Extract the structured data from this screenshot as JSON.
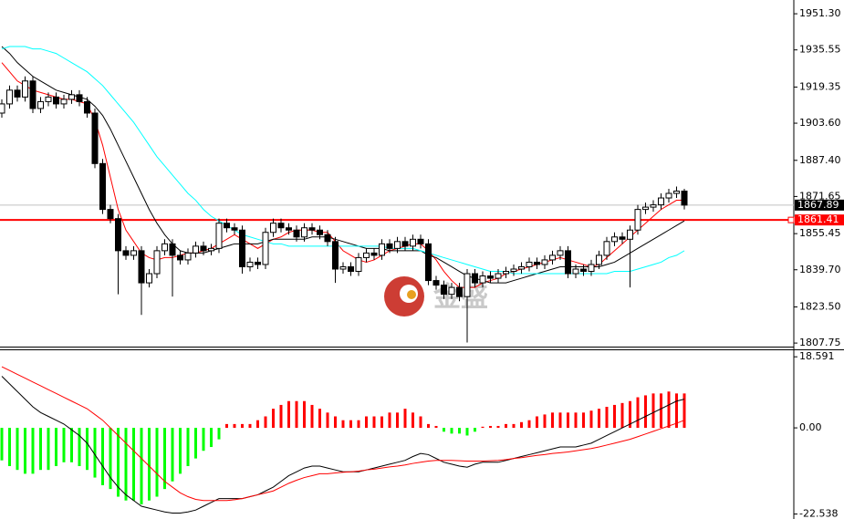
{
  "chart_data": [
    {
      "type": "candlestick",
      "watermark": "金盛",
      "ylim": [
        1806.2,
        1957.3
      ],
      "yticks": [
        {
          "value": 1951.3,
          "label": "1951.30"
        },
        1935.55,
        1919.35,
        {
          "value": 1903.6,
          "label": "1903.60"
        },
        {
          "value": 1887.4,
          "label": "1887.40"
        },
        1871.65,
        1855.45,
        {
          "value": 1839.7,
          "label": "1839.70"
        },
        {
          "value": 1823.5,
          "label": "1823.50"
        },
        1807.75
      ],
      "last_price": 1867.89,
      "last_price_color": "#c0c0c0",
      "level": 1861.41,
      "level_color": "#ff0000",
      "up_color": "#ffffff",
      "down_color": "#000000",
      "open": [
        1908,
        1912,
        1918,
        1915,
        1922,
        1910,
        1913,
        1915,
        1912,
        1914,
        1916,
        1913,
        1908,
        1886,
        1866,
        1862,
        1848,
        1846,
        1848,
        1834,
        1838,
        1848,
        1851,
        1846,
        1844,
        1847,
        1850,
        1848,
        1849,
        1860,
        1858,
        1857,
        1841,
        1843,
        1842,
        1856,
        1860,
        1858,
        1857,
        1854,
        1858,
        1857,
        1855,
        1852,
        1840,
        1841,
        1839,
        1845,
        1847,
        1846,
        1851,
        1849,
        1852,
        1850,
        1853,
        1851,
        1835,
        1833,
        1829,
        1832,
        1828,
        1838,
        1834,
        1837,
        1836,
        1838,
        1839,
        1840,
        1841,
        1843,
        1842,
        1844,
        1846,
        1848,
        1838,
        1840,
        1839,
        1842,
        1846,
        1852,
        1854,
        1853,
        1857,
        1866,
        1867,
        1868,
        1871,
        1873,
        1874
      ],
      "high": [
        1914,
        1920,
        1920,
        1924,
        1924,
        1915,
        1917,
        1917,
        1916,
        1918,
        1918,
        1915,
        1910,
        1888,
        1868,
        1864,
        1850,
        1850,
        1850,
        1840,
        1850,
        1853,
        1853,
        1848,
        1849,
        1852,
        1852,
        1851,
        1862,
        1862,
        1860,
        1859,
        1845,
        1845,
        1858,
        1862,
        1862,
        1860,
        1859,
        1860,
        1860,
        1859,
        1857,
        1854,
        1843,
        1843,
        1847,
        1849,
        1849,
        1853,
        1853,
        1854,
        1854,
        1855,
        1855,
        1853,
        1837,
        1835,
        1834,
        1834,
        1840,
        1840,
        1839,
        1839,
        1840,
        1841,
        1842,
        1843,
        1845,
        1845,
        1846,
        1848,
        1850,
        1850,
        1842,
        1842,
        1844,
        1848,
        1854,
        1856,
        1856,
        1859,
        1868,
        1869,
        1870,
        1873,
        1875,
        1876,
        1875
      ],
      "low": [
        1906,
        1910,
        1913,
        1913,
        1908,
        1908,
        1911,
        1910,
        1910,
        1912,
        1911,
        1906,
        1884,
        1864,
        1860,
        1829,
        1844,
        1844,
        1820,
        1832,
        1836,
        1846,
        1828,
        1842,
        1842,
        1845,
        1846,
        1846,
        1847,
        1856,
        1855,
        1838,
        1839,
        1840,
        1840,
        1854,
        1856,
        1855,
        1852,
        1852,
        1855,
        1853,
        1850,
        1834,
        1838,
        1837,
        1837,
        1843,
        1844,
        1844,
        1847,
        1847,
        1848,
        1848,
        1849,
        1833,
        1831,
        1827,
        1827,
        1826,
        1808,
        1832,
        1832,
        1834,
        1834,
        1836,
        1837,
        1838,
        1839,
        1840,
        1840,
        1842,
        1844,
        1836,
        1836,
        1837,
        1837,
        1840,
        1844,
        1850,
        1851,
        1832,
        1855,
        1864,
        1865,
        1866,
        1869,
        1871,
        1866
      ],
      "close": [
        1912,
        1918,
        1915,
        1922,
        1910,
        1913,
        1915,
        1912,
        1914,
        1916,
        1913,
        1908,
        1886,
        1866,
        1862,
        1848,
        1846,
        1848,
        1834,
        1838,
        1848,
        1851,
        1846,
        1844,
        1847,
        1850,
        1848,
        1849,
        1860,
        1858,
        1857,
        1841,
        1843,
        1842,
        1856,
        1860,
        1858,
        1857,
        1854,
        1858,
        1857,
        1855,
        1852,
        1840,
        1841,
        1839,
        1845,
        1847,
        1846,
        1851,
        1849,
        1852,
        1850,
        1853,
        1851,
        1835,
        1833,
        1829,
        1832,
        1828,
        1838,
        1834,
        1837,
        1836,
        1838,
        1839,
        1840,
        1841,
        1843,
        1842,
        1844,
        1846,
        1848,
        1838,
        1840,
        1839,
        1842,
        1846,
        1852,
        1854,
        1853,
        1857,
        1866,
        1867,
        1868,
        1871,
        1873,
        1874,
        1867.89
      ],
      "lines": [
        {
          "color": "#ff0000",
          "values": [
            1930,
            1926,
            1922,
            1920,
            1918,
            1917,
            1916,
            1915,
            1914,
            1914,
            1913,
            1912,
            1905,
            1894,
            1880,
            1866,
            1857,
            1852,
            1847,
            1845,
            1844,
            1845,
            1845,
            1846,
            1847,
            1847,
            1848,
            1849,
            1851,
            1853,
            1855,
            1853,
            1851,
            1849,
            1851,
            1853,
            1854,
            1856,
            1857,
            1857,
            1857,
            1856,
            1856,
            1852,
            1848,
            1846,
            1844,
            1843,
            1844,
            1846,
            1848,
            1849,
            1850,
            1851,
            1851,
            1848,
            1844,
            1839,
            1835,
            1832,
            1832,
            1832,
            1834,
            1835,
            1836,
            1838,
            1839,
            1840,
            1841,
            1842,
            1843,
            1844,
            1845,
            1844,
            1843,
            1842,
            1841,
            1842,
            1845,
            1848,
            1851,
            1854,
            1857,
            1860,
            1863,
            1866,
            1868,
            1870,
            1870
          ]
        },
        {
          "color": "#000000",
          "values": [
            1937,
            1934,
            1930,
            1927,
            1924,
            1922,
            1920,
            1918,
            1917,
            1916,
            1915,
            1914,
            1911,
            1907,
            1901,
            1894,
            1887,
            1880,
            1873,
            1866,
            1860,
            1855,
            1851,
            1848,
            1847,
            1847,
            1847,
            1848,
            1849,
            1850,
            1851,
            1851,
            1851,
            1851,
            1852,
            1853,
            1853,
            1853,
            1853,
            1853,
            1854,
            1854,
            1854,
            1853,
            1852,
            1851,
            1850,
            1849,
            1849,
            1849,
            1848,
            1848,
            1848,
            1848,
            1848,
            1846,
            1845,
            1843,
            1841,
            1839,
            1837,
            1836,
            1835,
            1834,
            1834,
            1834,
            1835,
            1836,
            1837,
            1838,
            1839,
            1840,
            1841,
            1841,
            1841,
            1841,
            1841,
            1841,
            1842,
            1843,
            1845,
            1847,
            1849,
            1851,
            1853,
            1855,
            1857,
            1859,
            1861
          ]
        },
        {
          "color": "#00ffff",
          "values": [
            1936,
            1937,
            1937,
            1937,
            1936,
            1936,
            1935,
            1934,
            1932,
            1930,
            1928,
            1926,
            1923,
            1920,
            1916,
            1912,
            1908,
            1904,
            1899,
            1894,
            1889,
            1885,
            1881,
            1877,
            1873,
            1870,
            1866,
            1863,
            1861,
            1859,
            1857,
            1855,
            1854,
            1853,
            1852,
            1851,
            1851,
            1850,
            1850,
            1850,
            1850,
            1850,
            1850,
            1850,
            1850,
            1850,
            1850,
            1850,
            1850,
            1850,
            1849,
            1849,
            1849,
            1849,
            1848,
            1847,
            1846,
            1845,
            1844,
            1843,
            1842,
            1841,
            1840,
            1839,
            1839,
            1839,
            1838,
            1838,
            1838,
            1838,
            1838,
            1838,
            1838,
            1838,
            1838,
            1838,
            1838,
            1838,
            1838,
            1839,
            1839,
            1839,
            1840,
            1841,
            1842,
            1843,
            1845,
            1846,
            1848
          ]
        }
      ]
    },
    {
      "type": "macd",
      "ylim": [
        -23.6,
        20.3
      ],
      "yticks": [
        18.591,
        {
          "value": 0,
          "label": "0.00"
        },
        -22.538
      ],
      "pos_color": "#ff0000",
      "neg_color": "#00ff00",
      "histogram": [
        -8.5,
        -10,
        -11,
        -12,
        -12,
        -11,
        -11,
        -10,
        -9,
        -9,
        -10,
        -11,
        -13,
        -15,
        -16,
        -18,
        -19,
        -19,
        -20,
        -19,
        -18,
        -16,
        -14,
        -12,
        -10,
        -8,
        -6,
        -5,
        -3,
        1,
        1,
        1,
        1,
        2,
        3,
        5,
        6,
        7,
        7,
        7,
        6,
        5,
        4,
        3,
        2,
        2,
        2,
        3,
        3,
        3,
        4,
        4,
        5,
        4,
        3,
        1,
        0.5,
        -1,
        -1.5,
        -1.5,
        -2,
        -1,
        0.3,
        0.5,
        0.5,
        1,
        1,
        1.5,
        2,
        3,
        3.5,
        4,
        4,
        4,
        4,
        4,
        4.5,
        5,
        5.5,
        6,
        6.5,
        7,
        8,
        8.5,
        9,
        9,
        9.5,
        9,
        9
      ],
      "lines": [
        {
          "color": "#000000",
          "values": [
            13.5,
            11.5,
            9.5,
            7.5,
            5.5,
            4,
            3,
            2,
            1,
            -0.5,
            -2,
            -4,
            -7,
            -10,
            -13,
            -15.5,
            -17.5,
            -19,
            -20.5,
            -21,
            -21.5,
            -22,
            -22.3,
            -22.3,
            -22,
            -21.5,
            -20.5,
            -19.5,
            -18.5,
            -18.5,
            -18.5,
            -18.5,
            -18,
            -17.5,
            -16.5,
            -15.5,
            -14,
            -12.5,
            -11.5,
            -10.5,
            -10,
            -10,
            -10.5,
            -11,
            -11.5,
            -11.5,
            -11.5,
            -11,
            -10.5,
            -10,
            -9.5,
            -9,
            -8.5,
            -7.5,
            -6.7,
            -7,
            -8,
            -9,
            -9.5,
            -10,
            -10.3,
            -9.5,
            -9,
            -9,
            -9,
            -8.5,
            -8,
            -7.5,
            -7,
            -6.5,
            -6,
            -5.5,
            -5,
            -5,
            -5,
            -4.5,
            -4,
            -3,
            -2,
            -1,
            0,
            1,
            2,
            3,
            4,
            5,
            6,
            7,
            7.5
          ]
        },
        {
          "color": "#ff0000",
          "values": [
            16,
            15,
            14,
            13,
            12,
            11,
            10,
            9,
            8,
            7,
            6,
            5,
            3.5,
            2,
            0,
            -2,
            -4,
            -6,
            -8,
            -10,
            -12,
            -14,
            -15.5,
            -17,
            -18,
            -18.7,
            -19,
            -19,
            -19,
            -19,
            -18.8,
            -18.5,
            -18,
            -17.5,
            -17,
            -16.5,
            -15.5,
            -14.5,
            -13.7,
            -13,
            -12.5,
            -12,
            -12,
            -11.8,
            -11.6,
            -11.5,
            -11.3,
            -11,
            -10.8,
            -10.5,
            -10.2,
            -10,
            -9.7,
            -9.3,
            -9,
            -8.7,
            -8.5,
            -8.5,
            -8.5,
            -8.6,
            -8.7,
            -8.7,
            -8.7,
            -8.6,
            -8.5,
            -8.3,
            -8,
            -7.8,
            -7.5,
            -7.2,
            -7,
            -6.7,
            -6.5,
            -6.3,
            -6,
            -5.7,
            -5.4,
            -5,
            -4.5,
            -4,
            -3.5,
            -3,
            -2.3,
            -1.6,
            -0.9,
            -0.2,
            0.5,
            1.2,
            2
          ]
        }
      ]
    }
  ]
}
